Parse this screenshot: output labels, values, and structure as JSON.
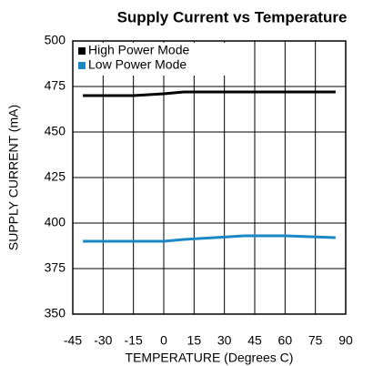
{
  "chart_data": {
    "type": "line",
    "title": "Supply Current vs Temperature",
    "x_label": "TEMPERATURE (Degrees C)",
    "y_label": "SUPPLY CURRENT (mA)",
    "series": [
      {
        "name": "High Power Mode",
        "color": "#000000",
        "x": [
          -40,
          -15,
          0,
          10,
          25,
          40,
          60,
          85
        ],
        "values": [
          470,
          470,
          471,
          472,
          472,
          472,
          472,
          472
        ]
      },
      {
        "name": "Low Power Mode",
        "color": "#1a88c4",
        "x": [
          -40,
          -15,
          0,
          10,
          25,
          40,
          60,
          85
        ],
        "values": [
          390,
          390,
          390,
          391,
          392,
          393,
          393,
          392
        ]
      }
    ],
    "xlim": [
      -45,
      90
    ],
    "xticks": [
      -45,
      -30,
      -15,
      0,
      15,
      30,
      45,
      60,
      75,
      90
    ],
    "ylim": [
      350,
      500
    ],
    "yticks": [
      350,
      375,
      400,
      425,
      450,
      475,
      500
    ],
    "grid": true,
    "legend": "upper left"
  }
}
